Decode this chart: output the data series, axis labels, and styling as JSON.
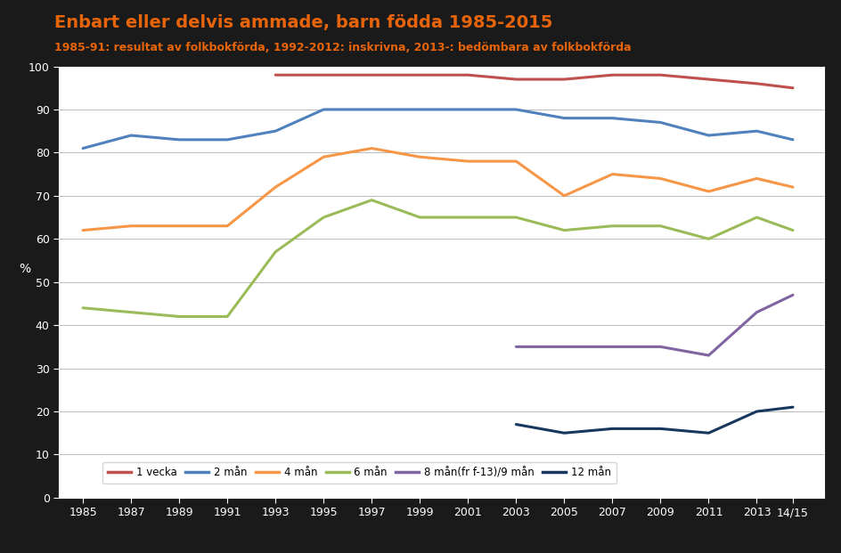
{
  "title": "Enbart eller delvis ammade, barn födda 1985-2015",
  "subtitle": "1985-91: resultat av folkbokförda, 1992-2012: inskrivna, 2013-: bedömbara av folkbokförda",
  "ylabel": "%",
  "ylim": [
    0,
    100
  ],
  "background_color": "#1a1a1a",
  "plot_bg_color": "#ffffff",
  "title_color": "#e8640a",
  "subtitle_color": "#e8640a",
  "xtick_labels": [
    "1985",
    "1987",
    "1989",
    "1991",
    "1993",
    "1995",
    "1997",
    "1999",
    "2001",
    "2003",
    "2005",
    "2007",
    "2009",
    "2011",
    "2013",
    "14/15"
  ],
  "series": {
    "1 vecka": {
      "color": "#c0504d",
      "x": [
        1993,
        1995,
        1997,
        1999,
        2001,
        2003,
        2005,
        2007,
        2009,
        2011,
        2013,
        2014.5
      ],
      "y": [
        98,
        98,
        98,
        98,
        98,
        97,
        97,
        98,
        98,
        97,
        96,
        95
      ]
    },
    "2 mån": {
      "color": "#4f81bd",
      "x": [
        1985,
        1987,
        1989,
        1991,
        1993,
        1995,
        1997,
        1999,
        2001,
        2003,
        2005,
        2007,
        2009,
        2011,
        2013,
        2014.5
      ],
      "y": [
        81,
        84,
        83,
        83,
        85,
        90,
        90,
        90,
        90,
        90,
        88,
        88,
        87,
        84,
        85,
        83
      ]
    },
    "4 mån": {
      "color": "#f79646",
      "x": [
        1985,
        1987,
        1989,
        1991,
        1993,
        1995,
        1997,
        1999,
        2001,
        2003,
        2005,
        2007,
        2009,
        2011,
        2013,
        2014.5
      ],
      "y": [
        62,
        63,
        63,
        63,
        72,
        79,
        81,
        79,
        78,
        78,
        70,
        75,
        74,
        71,
        74,
        72
      ]
    },
    "6 mån": {
      "color": "#9bbb59",
      "x": [
        1985,
        1987,
        1989,
        1991,
        1993,
        1995,
        1997,
        1999,
        2001,
        2003,
        2005,
        2007,
        2009,
        2011,
        2013,
        2014.5
      ],
      "y": [
        44,
        43,
        42,
        42,
        57,
        65,
        69,
        65,
        65,
        65,
        62,
        63,
        63,
        60,
        65,
        62
      ]
    },
    "8 mån(fr f-13)/9 mån": {
      "color": "#8064a2",
      "x": [
        2003,
        2005,
        2007,
        2009,
        2011,
        2013,
        2014.5
      ],
      "y": [
        35,
        35,
        35,
        35,
        33,
        43,
        47
      ]
    },
    "12 mån": {
      "color": "#17375e",
      "x": [
        2003,
        2005,
        2007,
        2009,
        2011,
        2013,
        2014.5
      ],
      "y": [
        17,
        15,
        16,
        16,
        15,
        20,
        21
      ]
    }
  }
}
